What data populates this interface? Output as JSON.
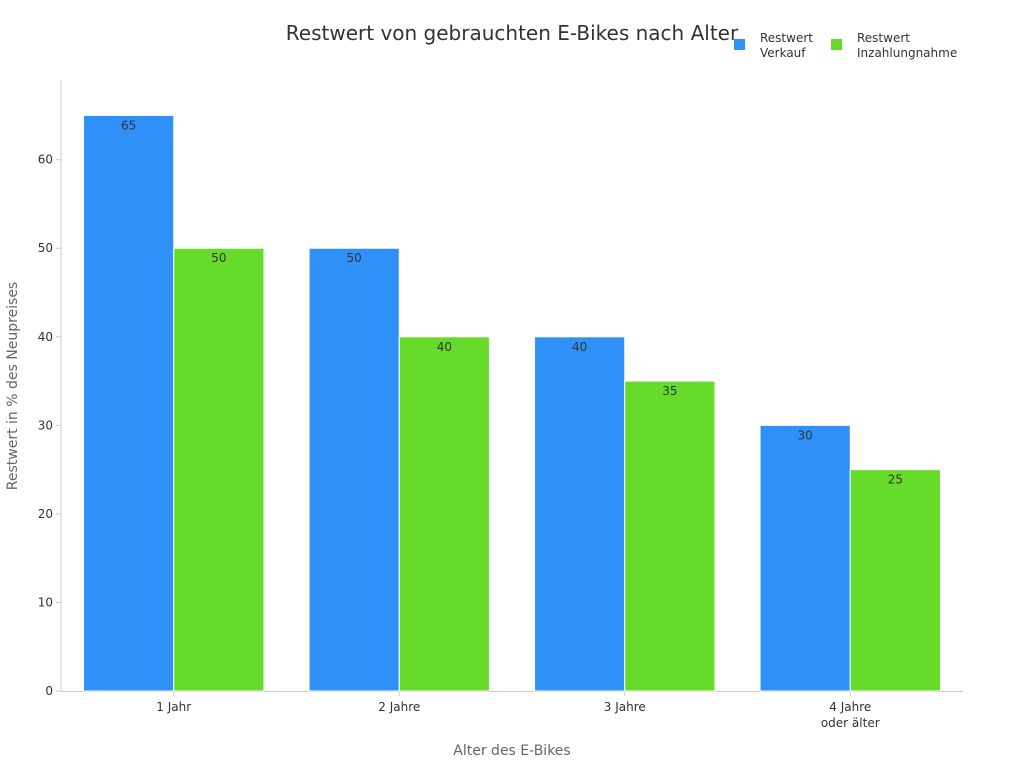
{
  "chart_data": {
    "type": "bar",
    "title": "Restwert von gebrauchten E-Bikes nach Alter",
    "xlabel": "Alter des E-Bikes",
    "ylabel": "Restwert in % des Neupreises",
    "categories": [
      [
        "1 Jahr"
      ],
      [
        "2 Jahre"
      ],
      [
        "3 Jahre"
      ],
      [
        "4 Jahre",
        "oder älter"
      ]
    ],
    "series": [
      {
        "name": [
          "Restwert",
          "Verkauf"
        ],
        "color": "#2f91f8",
        "values": [
          65,
          50,
          40,
          30
        ]
      },
      {
        "name": [
          "Restwert",
          "Inzahlungnahme"
        ],
        "color": "#67db29",
        "values": [
          50,
          40,
          35,
          25
        ]
      }
    ],
    "ylim": [
      0,
      69
    ],
    "yticks": [
      0,
      10,
      20,
      30,
      40,
      50,
      60
    ],
    "grid": false,
    "legend_position": "top-right"
  }
}
